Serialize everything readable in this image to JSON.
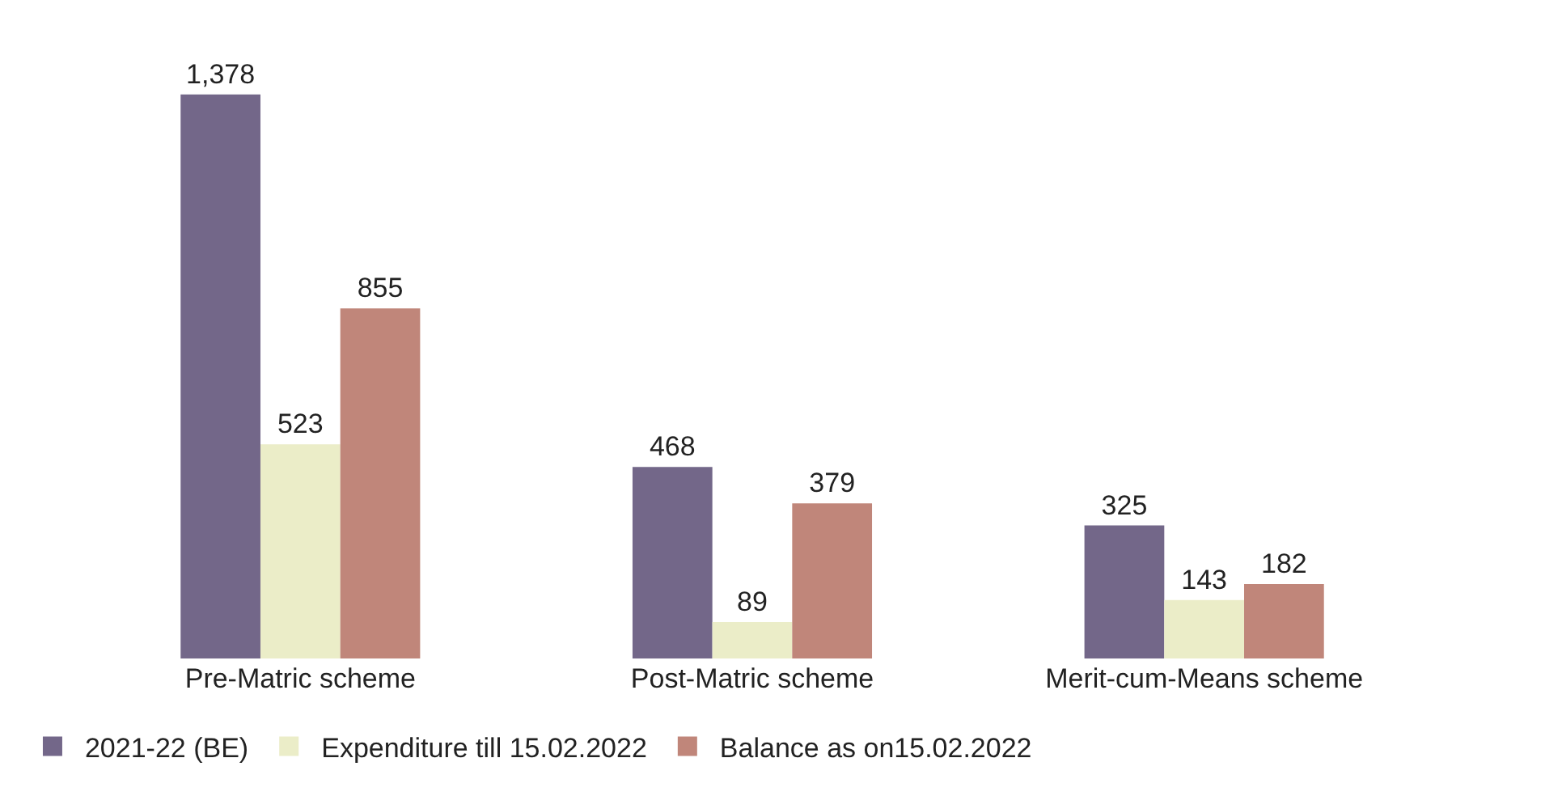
{
  "chart_data": {
    "type": "bar",
    "categories": [
      "Pre-Matric scheme",
      "Post-Matric scheme",
      "Merit-cum-Means scheme"
    ],
    "series": [
      {
        "name": "2021-22 (BE)",
        "color": "#736789",
        "values": [
          1378,
          468,
          325
        ],
        "value_labels": [
          "1,378",
          "468",
          "325"
        ]
      },
      {
        "name": "Expenditure till 15.02.2022",
        "color": "#ebedc8",
        "values": [
          523,
          89,
          143
        ]
      },
      {
        "name": "Balance as on15.02.2022",
        "color": "#c0867a",
        "values": [
          855,
          379,
          182
        ]
      }
    ],
    "data_labels": true,
    "legend": "bottom"
  }
}
